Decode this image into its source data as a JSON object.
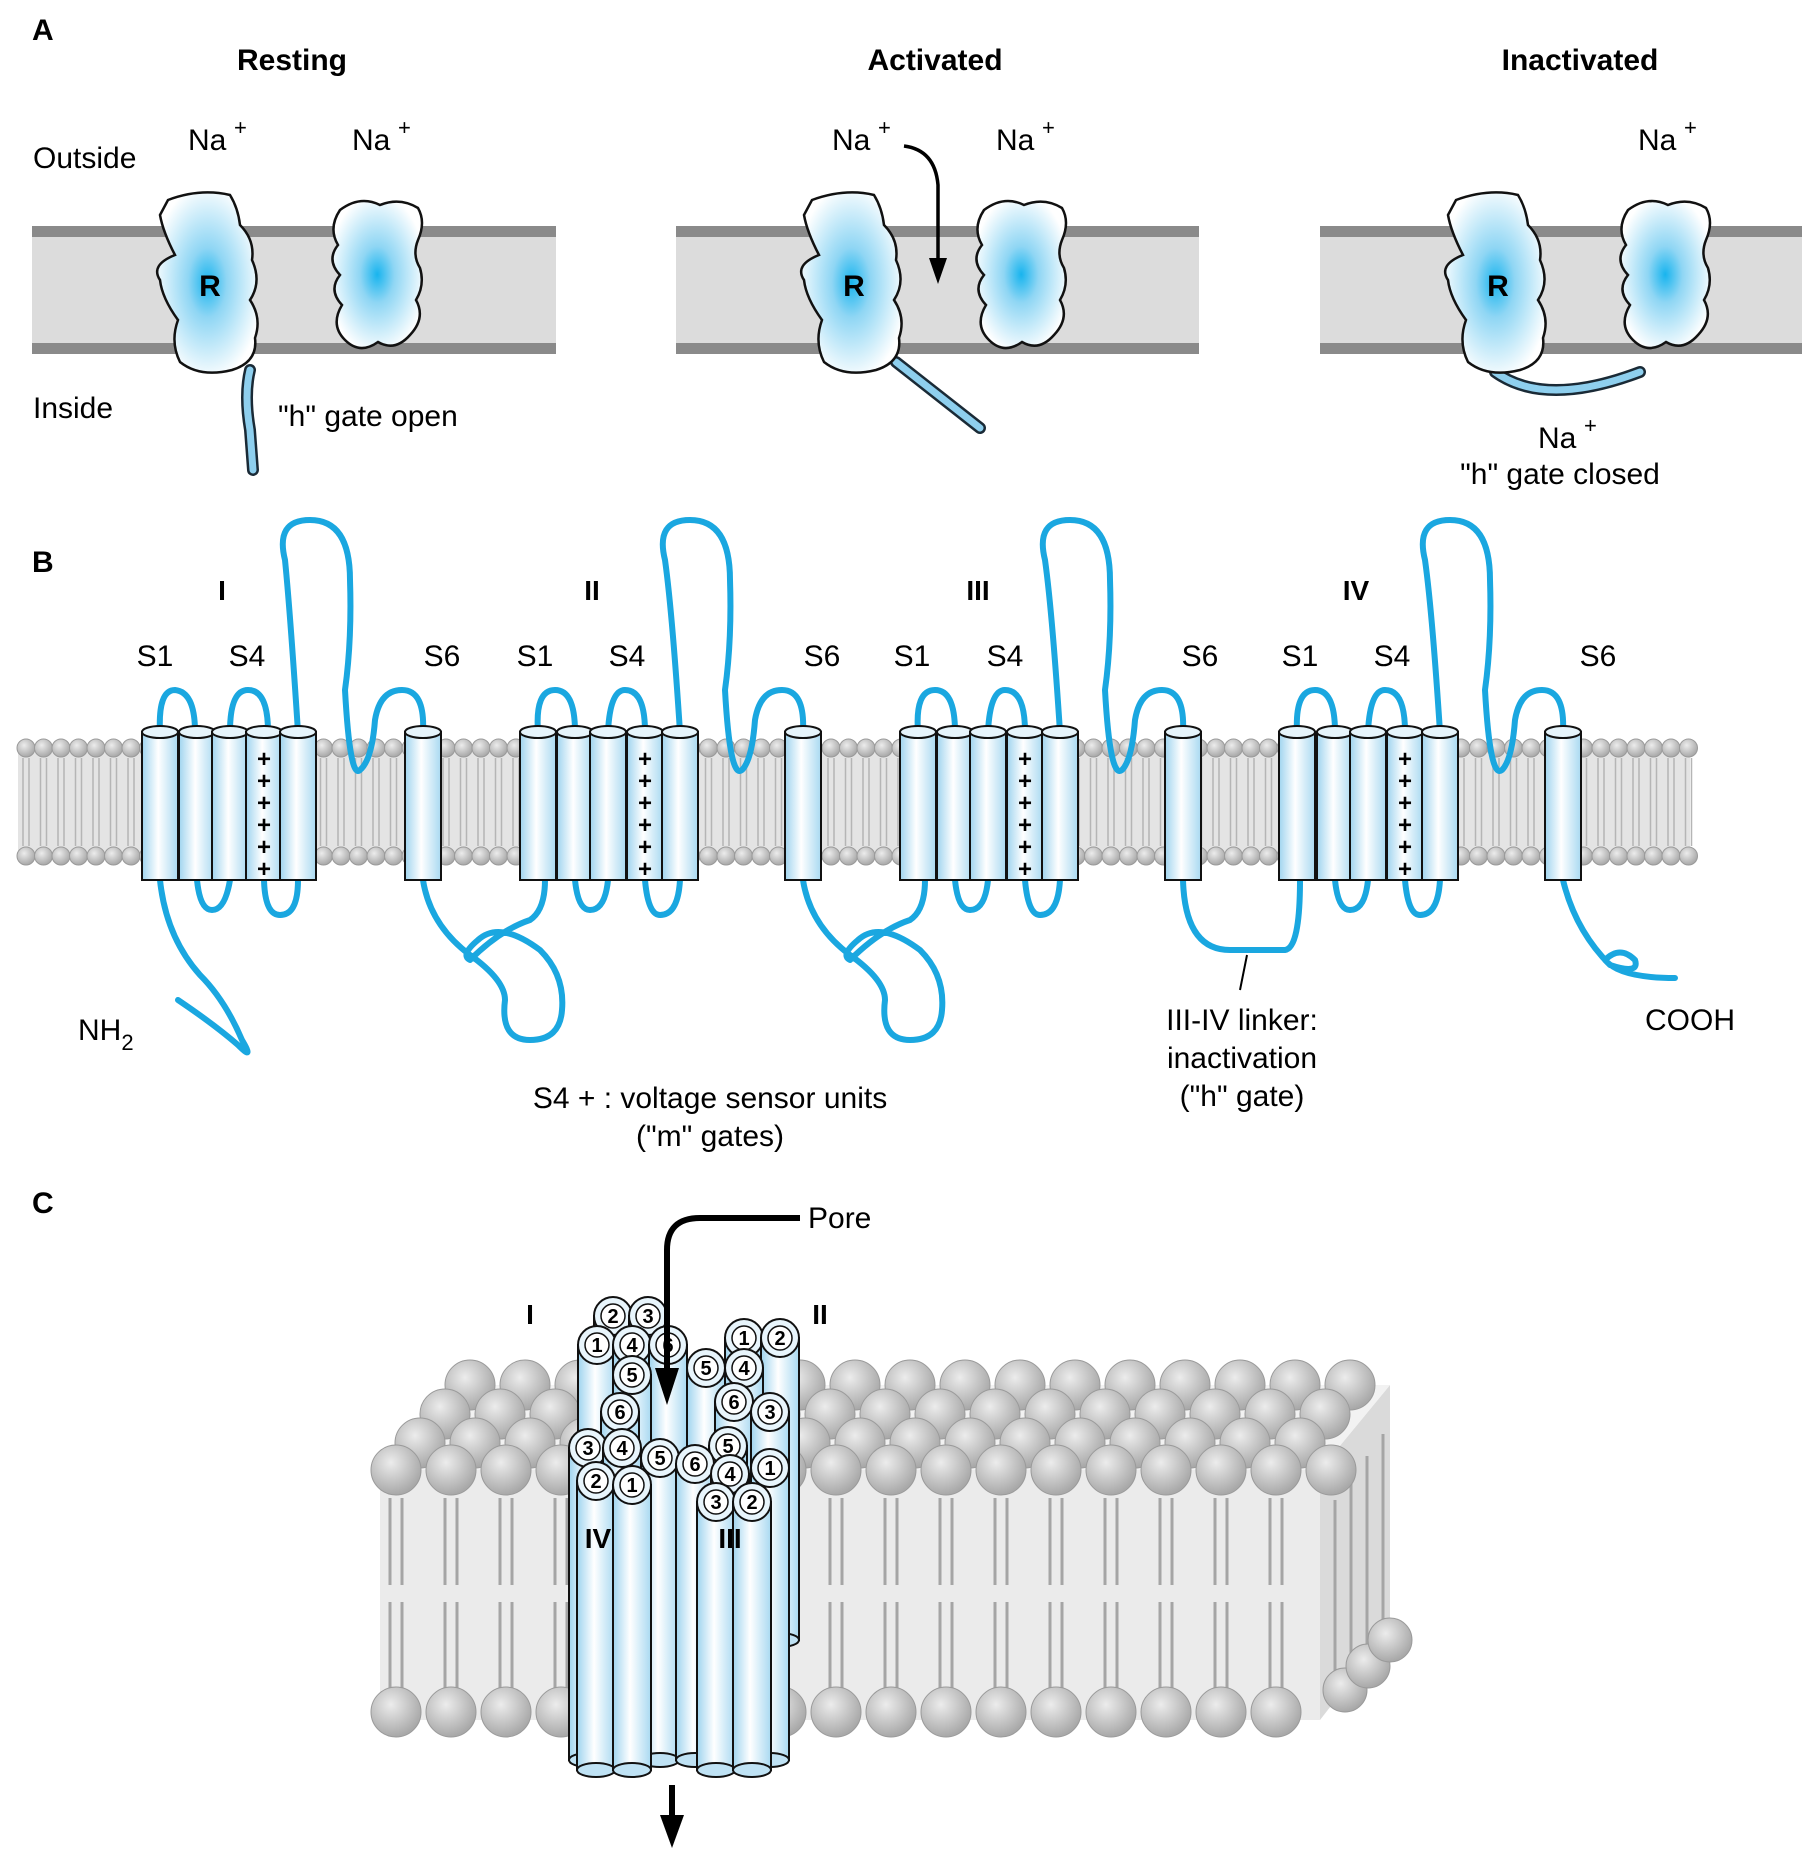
{
  "panelA": {
    "letter": "A",
    "states": [
      {
        "title": "Resting"
      },
      {
        "title": "Activated"
      },
      {
        "title": "Inactivated"
      }
    ],
    "outside": "Outside",
    "inside": "Inside",
    "na": "Na",
    "plus": "+",
    "receptor": "R",
    "h_open": "\"h\" gate open",
    "h_closed": "\"h\" gate closed"
  },
  "panelB": {
    "letter": "B",
    "domains": [
      "I",
      "II",
      "III",
      "IV"
    ],
    "segment_labels": {
      "s1": "S1",
      "s4": "S4",
      "s6": "S6"
    },
    "nh2_main": "NH",
    "nh2_sub": "2",
    "cooh": "COOH",
    "s4_caption_line1": "S4 + : voltage sensor units",
    "s4_caption_line2": "(\"m\" gates)",
    "linker_line1": "III-IV linker:",
    "linker_line2": "inactivation",
    "linker_line3": "(\"h\" gate)"
  },
  "panelC": {
    "letter": "C",
    "pore": "Pore",
    "domains": {
      "d1": "I",
      "d2": "II",
      "d3": "III",
      "d4": "IV"
    },
    "helix_numbers": {
      "d1": [
        "2",
        "3",
        "1",
        "4",
        "6",
        "5"
      ],
      "d2": [
        "1",
        "2",
        "5",
        "4",
        "6",
        "3"
      ],
      "d3": [
        "5",
        "6",
        "4",
        "1",
        "3",
        "2"
      ],
      "d4": [
        "6",
        "3",
        "4",
        "5",
        "2",
        "1"
      ]
    }
  },
  "colors": {
    "accent_blue": "#1aa7e0",
    "light_blue": "#d6eefa",
    "membrane_gray": "#dcdcdc",
    "membrane_dark": "#8a8a8a",
    "lipid_head": "#c8c8c8"
  }
}
